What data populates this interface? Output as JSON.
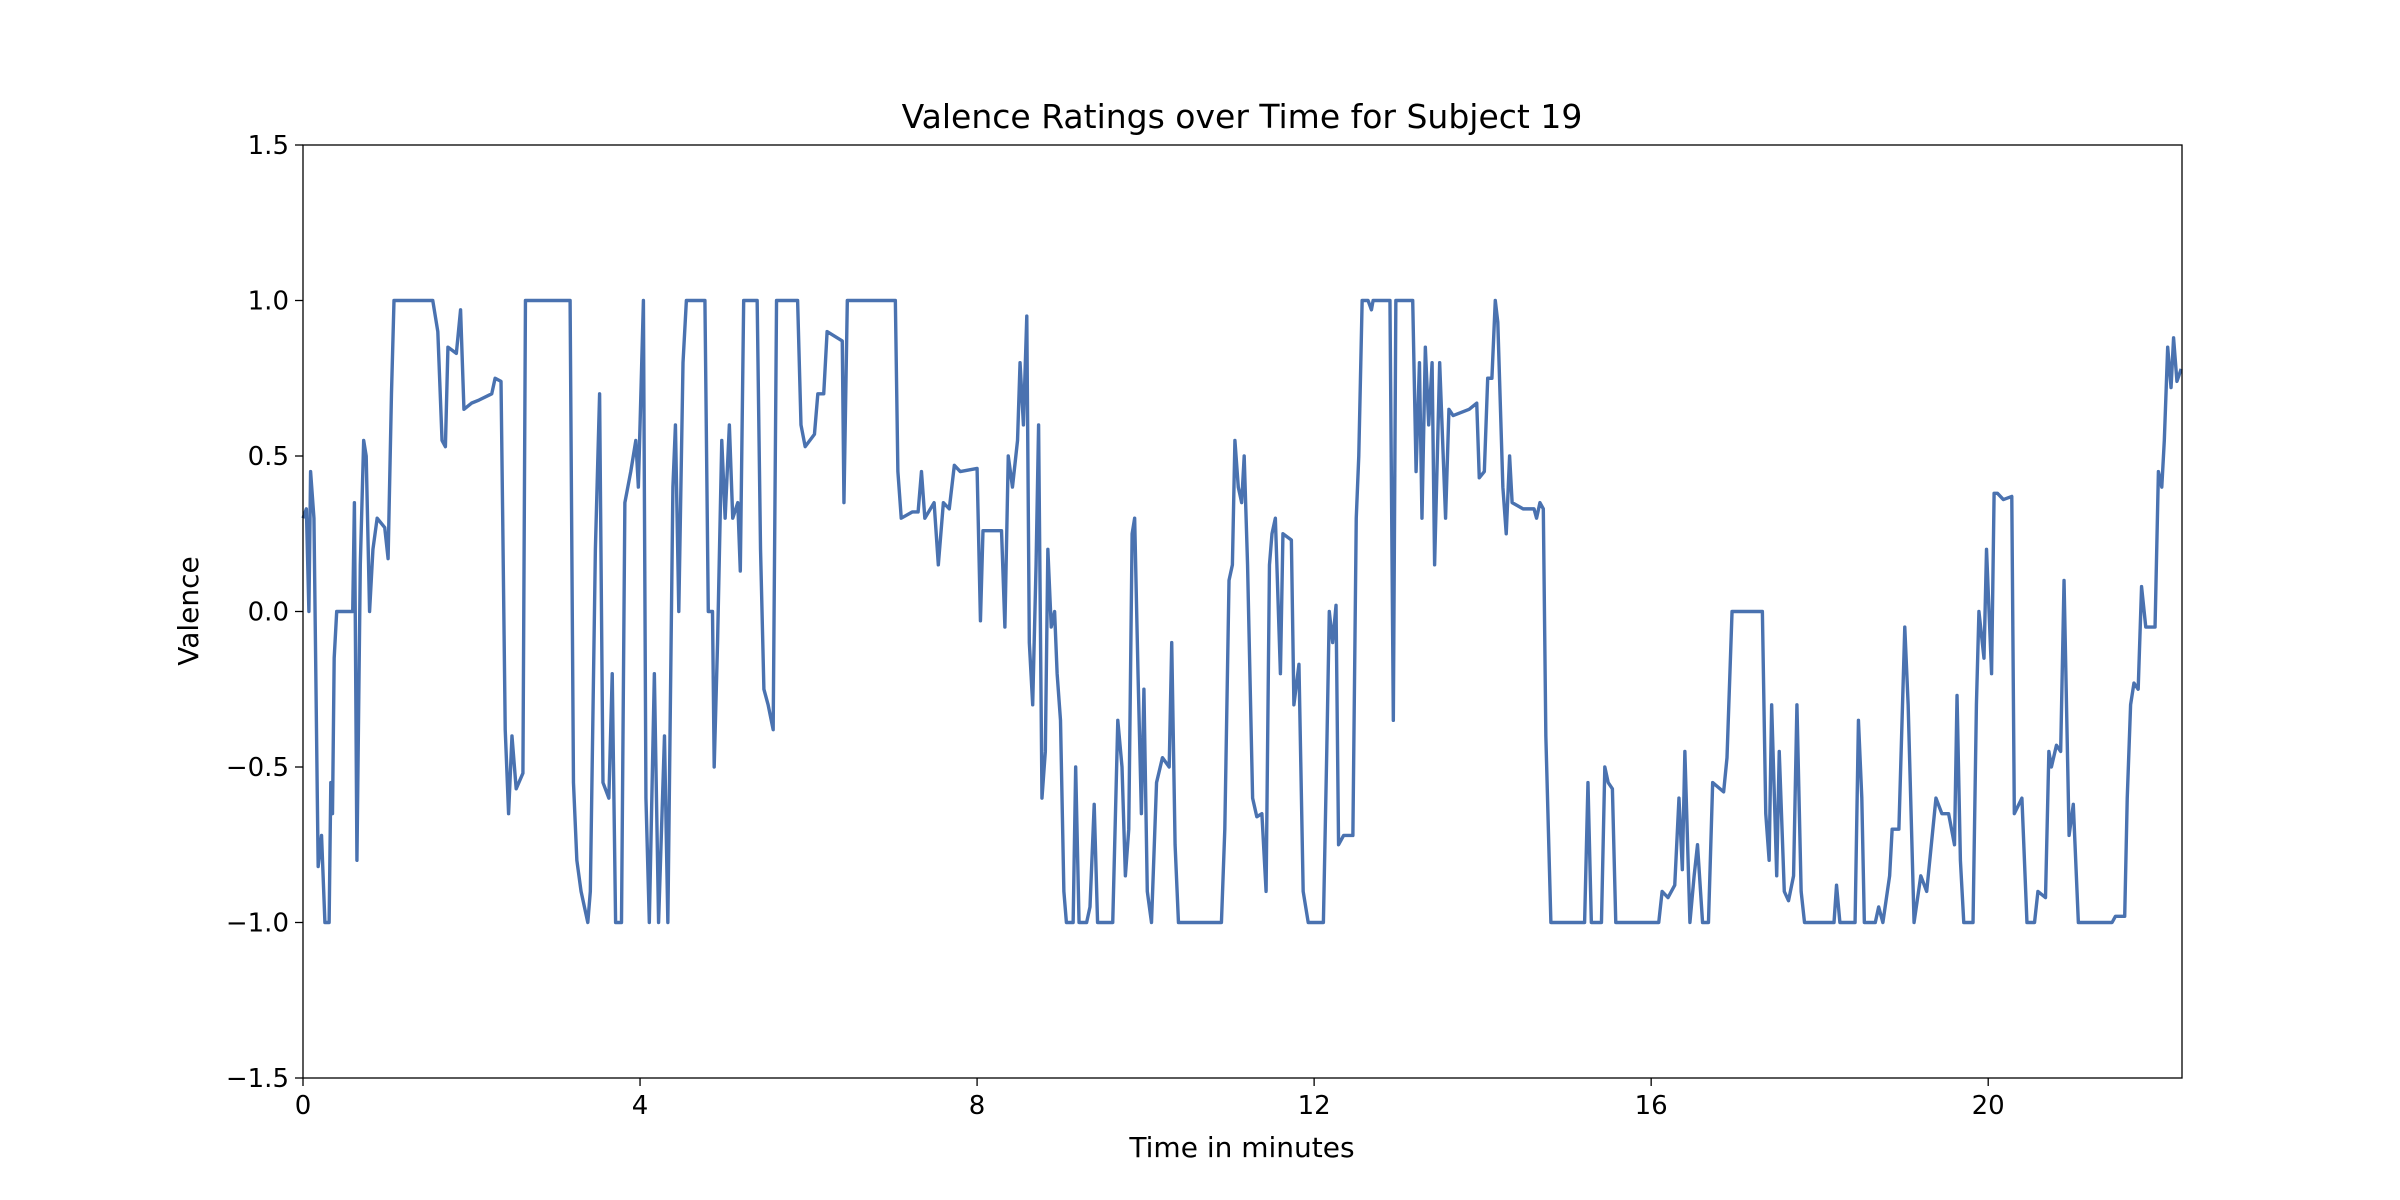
{
  "chart_data": {
    "type": "line",
    "title": "Valence Ratings over Time for Subject 19",
    "xlabel": "Time in minutes",
    "ylabel": "Valence",
    "color": "#4a72b0",
    "xlim": [
      0,
      22.3
    ],
    "ylim": [
      -1.5,
      1.5
    ],
    "xticks": [
      0,
      4,
      8,
      12,
      16,
      20
    ],
    "yticks": [
      {
        "value": -1.5,
        "label": "−1.5"
      },
      {
        "value": -1,
        "label": "−1.0"
      },
      {
        "value": -0.5,
        "label": "−0.5"
      },
      {
        "value": 0,
        "label": "0.0"
      },
      {
        "value": 0.5,
        "label": "0.5"
      },
      {
        "value": 1,
        "label": "1.0"
      },
      1.5
    ],
    "x": [
      0,
      0.04,
      0.07,
      0.09,
      0.13,
      0.17,
      0.18,
      0.22,
      0.26,
      0.31,
      0.33,
      0.35,
      0.37,
      0.4,
      0.59,
      0.61,
      0.62,
      0.64,
      0.68,
      0.72,
      0.75,
      0.79,
      0.83,
      0.88,
      0.97,
      1.01,
      1.05,
      1.08,
      1.54,
      1.6,
      1.65,
      1.69,
      1.72,
      1.82,
      1.87,
      1.91,
      2.0,
      2.09,
      2.24,
      2.28,
      2.35,
      2.37,
      2.4,
      2.44,
      2.48,
      2.53,
      2.61,
      2.64,
      3.17,
      3.21,
      3.25,
      3.3,
      3.38,
      3.41,
      3.47,
      3.52,
      3.56,
      3.63,
      3.67,
      3.71,
      3.78,
      3.82,
      3.89,
      3.95,
      3.98,
      4.04,
      4.07,
      4.11,
      4.17,
      4.22,
      4.29,
      4.33,
      4.39,
      4.42,
      4.46,
      4.51,
      4.55,
      4.77,
      4.81,
      4.86,
      4.88,
      4.92,
      4.97,
      5.01,
      5.06,
      5.1,
      5.16,
      5.19,
      5.23,
      5.39,
      5.43,
      5.47,
      5.52,
      5.58,
      5.62,
      5.87,
      5.91,
      5.96,
      6.07,
      6.11,
      6.18,
      6.22,
      6.4,
      6.42,
      6.46,
      7.03,
      7.06,
      7.1,
      7.23,
      7.3,
      7.34,
      7.38,
      7.49,
      7.54,
      7.6,
      7.67,
      7.73,
      7.8,
      8.0,
      8.04,
      8.07,
      8.29,
      8.33,
      8.37,
      8.42,
      8.48,
      8.51,
      8.55,
      8.59,
      8.62,
      8.66,
      8.7,
      8.73,
      8.77,
      8.81,
      8.84,
      8.88,
      8.92,
      8.95,
      8.99,
      9.03,
      9.06,
      9.14,
      9.17,
      9.21,
      9.3,
      9.34,
      9.39,
      9.43,
      9.61,
      9.67,
      9.72,
      9.76,
      9.8,
      9.84,
      9.87,
      9.91,
      9.95,
      9.98,
      10.02,
      10.07,
      10.13,
      10.2,
      10.28,
      10.31,
      10.35,
      10.39,
      10.9,
      10.94,
      10.99,
      11.03,
      11.06,
      11.1,
      11.14,
      11.17,
      11.21,
      11.27,
      11.32,
      11.38,
      11.43,
      11.47,
      11.5,
      11.54,
      11.6,
      11.63,
      11.73,
      11.76,
      11.82,
      11.87,
      11.93,
      12.11,
      12.15,
      12.18,
      12.22,
      12.26,
      12.29,
      12.35,
      12.46,
      12.5,
      12.53,
      12.57,
      12.64,
      12.68,
      12.7,
      12.9,
      12.94,
      12.97,
      13.17,
      13.21,
      13.25,
      13.28,
      13.32,
      13.36,
      13.4,
      13.43,
      13.49,
      13.56,
      13.6,
      13.65,
      13.84,
      13.93,
      13.96,
      14.02,
      14.06,
      14.11,
      14.15,
      14.18,
      14.24,
      14.28,
      14.32,
      14.35,
      14.48,
      14.61,
      14.64,
      14.68,
      14.72,
      14.75,
      14.81,
      15.21,
      15.25,
      15.29,
      15.41,
      15.45,
      15.49,
      15.54,
      15.58,
      16.09,
      16.13,
      16.2,
      16.28,
      16.33,
      16.37,
      16.4,
      16.46,
      16.51,
      16.55,
      16.61,
      16.68,
      16.73,
      16.86,
      16.9,
      16.96,
      17.32,
      17.36,
      17.4,
      17.43,
      17.49,
      17.52,
      17.58,
      17.63,
      17.69,
      17.73,
      17.78,
      17.82,
      18.17,
      18.2,
      18.24,
      18.42,
      18.46,
      18.5,
      18.53,
      18.66,
      18.7,
      18.75,
      18.83,
      18.86,
      18.94,
      19.01,
      19.05,
      19.08,
      19.12,
      19.2,
      19.27,
      19.38,
      19.45,
      19.53,
      19.6,
      19.63,
      19.67,
      19.71,
      19.82,
      19.86,
      19.89,
      19.95,
      19.98,
      20.04,
      20.07,
      20.11,
      20.18,
      20.28,
      20.31,
      20.4,
      20.46,
      20.55,
      20.59,
      20.68,
      20.72,
      20.75,
      20.81,
      20.86,
      20.9,
      20.96,
      21.01,
      21.07,
      21.47,
      21.51,
      21.62,
      21.65,
      21.69,
      21.73,
      21.78,
      21.82,
      21.87,
      21.98,
      22.02,
      22.06,
      22.09,
      22.13,
      22.17,
      22.2,
      22.24,
      22.29
    ],
    "values": [
      0.3,
      0.33,
      0,
      0.45,
      0.3,
      -0.6,
      -0.82,
      -0.72,
      -1,
      -1,
      -0.55,
      -0.65,
      -0.15,
      0,
      0,
      0.35,
      0,
      -0.8,
      0.15,
      0.55,
      0.5,
      0,
      0.2,
      0.3,
      0.27,
      0.17,
      0.7,
      1,
      1,
      0.9,
      0.55,
      0.53,
      0.85,
      0.83,
      0.97,
      0.65,
      0.67,
      0.68,
      0.7,
      0.75,
      0.74,
      0.3,
      -0.38,
      -0.65,
      -0.4,
      -0.57,
      -0.52,
      1,
      1,
      -0.55,
      -0.8,
      -0.9,
      -1,
      -0.9,
      0.2,
      0.7,
      -0.55,
      -0.6,
      -0.2,
      -1,
      -1,
      0.35,
      0.45,
      0.55,
      0.4,
      1,
      -0.6,
      -1,
      -0.2,
      -1,
      -0.4,
      -1,
      0.4,
      0.6,
      0,
      0.8,
      1,
      1,
      0,
      0,
      -0.5,
      -0.1,
      0.55,
      0.3,
      0.6,
      0.3,
      0.35,
      0.13,
      1,
      1,
      0.2,
      -0.25,
      -0.3,
      -0.38,
      1,
      1,
      0.6,
      0.53,
      0.57,
      0.7,
      0.7,
      0.9,
      0.87,
      0.35,
      1,
      1,
      0.45,
      0.3,
      0.32,
      0.32,
      0.45,
      0.3,
      0.35,
      0.15,
      0.35,
      0.33,
      0.47,
      0.45,
      0.46,
      -0.03,
      0.26,
      0.26,
      -0.05,
      0.5,
      0.4,
      0.55,
      0.8,
      0.6,
      0.95,
      -0.1,
      -0.3,
      0.15,
      0.6,
      -0.6,
      -0.45,
      0.2,
      -0.05,
      0,
      -0.2,
      -0.35,
      -0.9,
      -1,
      -1,
      -0.5,
      -1,
      -1,
      -0.95,
      -0.62,
      -1,
      -1,
      -0.35,
      -0.5,
      -0.85,
      -0.7,
      0.25,
      0.3,
      -0.2,
      -0.65,
      -0.25,
      -0.9,
      -1,
      -0.55,
      -0.47,
      -0.5,
      -0.1,
      -0.75,
      -1,
      -1,
      -0.7,
      0.1,
      0.15,
      0.55,
      0.4,
      0.35,
      0.5,
      0.15,
      -0.6,
      -0.66,
      -0.65,
      -0.9,
      0.15,
      0.25,
      0.3,
      -0.2,
      0.25,
      0.23,
      -0.3,
      -0.17,
      -0.9,
      -1,
      -1,
      -0.45,
      0,
      -0.1,
      0.02,
      -0.75,
      -0.72,
      -0.72,
      0.3,
      0.5,
      1,
      1,
      0.97,
      1,
      1,
      -0.35,
      1,
      1,
      0.45,
      0.8,
      0.3,
      0.85,
      0.6,
      0.8,
      0.15,
      0.8,
      0.3,
      0.65,
      0.63,
      0.65,
      0.67,
      0.43,
      0.45,
      0.75,
      0.75,
      1,
      0.93,
      0.4,
      0.25,
      0.5,
      0.35,
      0.33,
      0.33,
      0.3,
      0.35,
      0.33,
      -0.4,
      -1,
      -1,
      -0.55,
      -1,
      -1,
      -0.5,
      -0.55,
      -0.57,
      -1,
      -1,
      -0.9,
      -0.92,
      -0.88,
      -0.6,
      -0.83,
      -0.45,
      -1,
      -0.85,
      -0.75,
      -1,
      -1,
      -0.55,
      -0.58,
      -0.47,
      0,
      0,
      -0.65,
      -0.8,
      -0.3,
      -0.85,
      -0.45,
      -0.9,
      -0.93,
      -0.85,
      -0.3,
      -0.9,
      -1,
      -1,
      -0.88,
      -1,
      -1,
      -0.35,
      -0.6,
      -1,
      -1,
      -0.95,
      -1,
      -0.85,
      -0.7,
      -0.7,
      -0.05,
      -0.3,
      -0.6,
      -1,
      -0.85,
      -0.9,
      -0.6,
      -0.65,
      -0.65,
      -0.75,
      -0.27,
      -0.8,
      -1,
      -1,
      -0.3,
      0,
      -0.15,
      0.2,
      -0.2,
      0.38,
      0.38,
      0.36,
      0.37,
      -0.65,
      -0.6,
      -1,
      -1,
      -0.9,
      -0.92,
      -0.45,
      -0.5,
      -0.43,
      -0.45,
      0.1,
      -0.72,
      -0.62,
      -1,
      -1,
      -0.98,
      -0.98,
      -0.6,
      -0.3,
      -0.23,
      -0.25,
      0.08,
      -0.05,
      -0.05,
      0.45,
      0.4,
      0.55,
      0.85,
      0.72,
      0.88,
      0.74,
      0.78
    ]
  }
}
